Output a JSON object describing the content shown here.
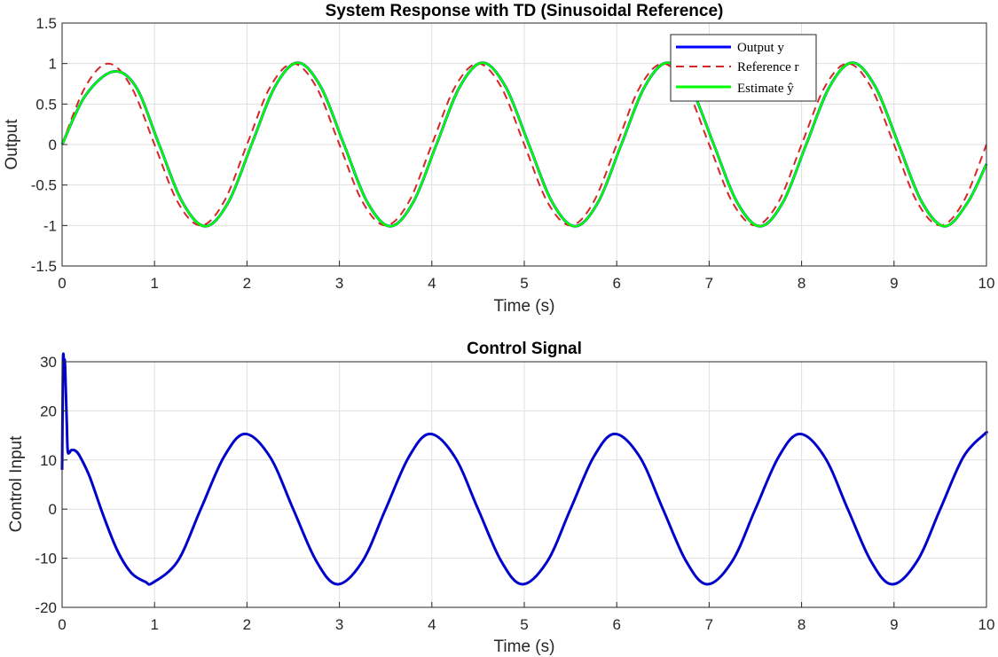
{
  "chart_data": [
    {
      "type": "line",
      "title": "System Response with TD (Sinusoidal Reference)",
      "xlabel": "Time (s)",
      "ylabel": "Output",
      "xlim": [
        0,
        10
      ],
      "ylim": [
        -1.5,
        1.5
      ],
      "xticks": [
        0,
        1,
        2,
        3,
        4,
        5,
        6,
        7,
        8,
        9,
        10
      ],
      "yticks": [
        -1.5,
        -1,
        -0.5,
        0,
        0.5,
        1,
        1.5
      ],
      "grid": true,
      "legend_position": "top-right",
      "series": [
        {
          "name": "Output y",
          "color": "#0000ff",
          "style": "solid",
          "x": [
            0,
            0.25,
            0.55,
            0.8,
            1.05,
            1.3,
            1.55,
            1.8,
            2.05,
            2.3,
            2.55,
            2.8,
            3.05,
            3.3,
            3.55,
            3.8,
            4.05,
            4.3,
            4.55,
            4.8,
            5.05,
            5.3,
            5.55,
            5.8,
            6.05,
            6.3,
            6.55,
            6.8,
            7.05,
            7.3,
            7.55,
            7.8,
            8.05,
            8.3,
            8.55,
            8.8,
            9.05,
            9.3,
            9.55,
            9.8,
            10
          ],
          "y": [
            0,
            0.6,
            0.9,
            0.71,
            0.0,
            -0.71,
            -1.01,
            -0.71,
            0.0,
            0.71,
            1.01,
            0.71,
            0.0,
            -0.71,
            -1.01,
            -0.71,
            0.0,
            0.71,
            1.01,
            0.71,
            0.0,
            -0.71,
            -1.01,
            -0.71,
            0.0,
            0.71,
            1.01,
            0.71,
            0.0,
            -0.71,
            -1.01,
            -0.71,
            0.0,
            0.71,
            1.01,
            0.71,
            0.0,
            -0.71,
            -1.01,
            -0.71,
            -0.24
          ]
        },
        {
          "name": "Reference r",
          "color": "#d62728",
          "style": "dashed",
          "x": [
            0,
            0.25,
            0.5,
            0.75,
            1.0,
            1.25,
            1.5,
            1.75,
            2.0,
            2.25,
            2.5,
            2.75,
            3.0,
            3.25,
            3.5,
            3.75,
            4.0,
            4.25,
            4.5,
            4.75,
            5.0,
            5.25,
            5.5,
            5.75,
            6.0,
            6.25,
            6.5,
            6.75,
            7.0,
            7.25,
            7.5,
            7.75,
            8.0,
            8.25,
            8.5,
            8.75,
            9.0,
            9.25,
            9.5,
            9.75,
            10.0
          ],
          "y": [
            0,
            0.71,
            1.0,
            0.71,
            0.0,
            -0.71,
            -1.0,
            -0.71,
            0.0,
            0.71,
            1.0,
            0.71,
            0.0,
            -0.71,
            -1.0,
            -0.71,
            0.0,
            0.71,
            1.0,
            0.71,
            0.0,
            -0.71,
            -1.0,
            -0.71,
            0.0,
            0.71,
            1.0,
            0.71,
            0.0,
            -0.71,
            -1.0,
            -0.71,
            0.0,
            0.71,
            1.0,
            0.71,
            0.0,
            -0.71,
            -1.0,
            -0.71,
            0.0
          ]
        },
        {
          "name": "Estimate ŷ",
          "color": "#00ff00",
          "style": "solid",
          "x": [
            0,
            0.25,
            0.55,
            0.8,
            1.05,
            1.3,
            1.55,
            1.8,
            2.05,
            2.3,
            2.55,
            2.8,
            3.05,
            3.3,
            3.55,
            3.8,
            4.05,
            4.3,
            4.55,
            4.8,
            5.05,
            5.3,
            5.55,
            5.8,
            6.05,
            6.3,
            6.55,
            6.8,
            7.05,
            7.3,
            7.55,
            7.8,
            8.05,
            8.3,
            8.55,
            8.8,
            9.05,
            9.3,
            9.55,
            9.8,
            10
          ],
          "y": [
            0,
            0.6,
            0.9,
            0.71,
            0.0,
            -0.71,
            -1.01,
            -0.71,
            0.0,
            0.71,
            1.01,
            0.71,
            0.0,
            -0.71,
            -1.01,
            -0.71,
            0.0,
            0.71,
            1.01,
            0.71,
            0.0,
            -0.71,
            -1.01,
            -0.71,
            0.0,
            0.71,
            1.01,
            0.71,
            0.0,
            -0.71,
            -1.01,
            -0.71,
            0.0,
            0.71,
            1.01,
            0.71,
            0.0,
            -0.71,
            -1.01,
            -0.71,
            -0.24
          ]
        }
      ]
    },
    {
      "type": "line",
      "title": "Control Signal",
      "xlabel": "Time (s)",
      "ylabel": "Control Input",
      "xlim": [
        0,
        10
      ],
      "ylim": [
        -20,
        30
      ],
      "xticks": [
        0,
        1,
        2,
        3,
        4,
        5,
        6,
        7,
        8,
        9,
        10
      ],
      "yticks": [
        -20,
        -10,
        0,
        10,
        20,
        30
      ],
      "grid": true,
      "series": [
        {
          "name": "Control Input",
          "color": "#0000cc",
          "style": "solid",
          "x": [
            0,
            0.01,
            0.02,
            0.03,
            0.04,
            0.05,
            0.06,
            0.08,
            0.1,
            0.15,
            0.2,
            0.3,
            0.45,
            0.6,
            0.75,
            0.9,
            0.98,
            1.25,
            1.5,
            1.75,
            1.98,
            2.25,
            2.5,
            2.75,
            2.98,
            3.25,
            3.5,
            3.75,
            3.98,
            4.25,
            4.5,
            4.75,
            4.98,
            5.25,
            5.5,
            5.75,
            5.98,
            6.25,
            6.5,
            6.75,
            6.98,
            7.25,
            7.5,
            7.75,
            7.98,
            8.25,
            8.5,
            8.75,
            8.98,
            9.25,
            9.5,
            9.75,
            9.98,
            10
          ],
          "y": [
            8,
            30,
            30,
            30,
            24,
            18,
            12,
            11.5,
            12,
            11.8,
            10.5,
            6.5,
            -1.5,
            -8.5,
            -13,
            -14.8,
            -15,
            -10.6,
            0,
            10.6,
            15.3,
            10.6,
            0,
            -10.6,
            -15.3,
            -10.6,
            0,
            10.6,
            15.3,
            10.6,
            0,
            -10.6,
            -15.3,
            -10.6,
            0,
            10.6,
            15.3,
            10.6,
            0,
            -10.6,
            -15.3,
            -10.6,
            0,
            10.6,
            15.3,
            10.6,
            0,
            -10.6,
            -15.3,
            -10.6,
            0,
            10.6,
            15.3,
            15.3
          ]
        }
      ]
    }
  ]
}
